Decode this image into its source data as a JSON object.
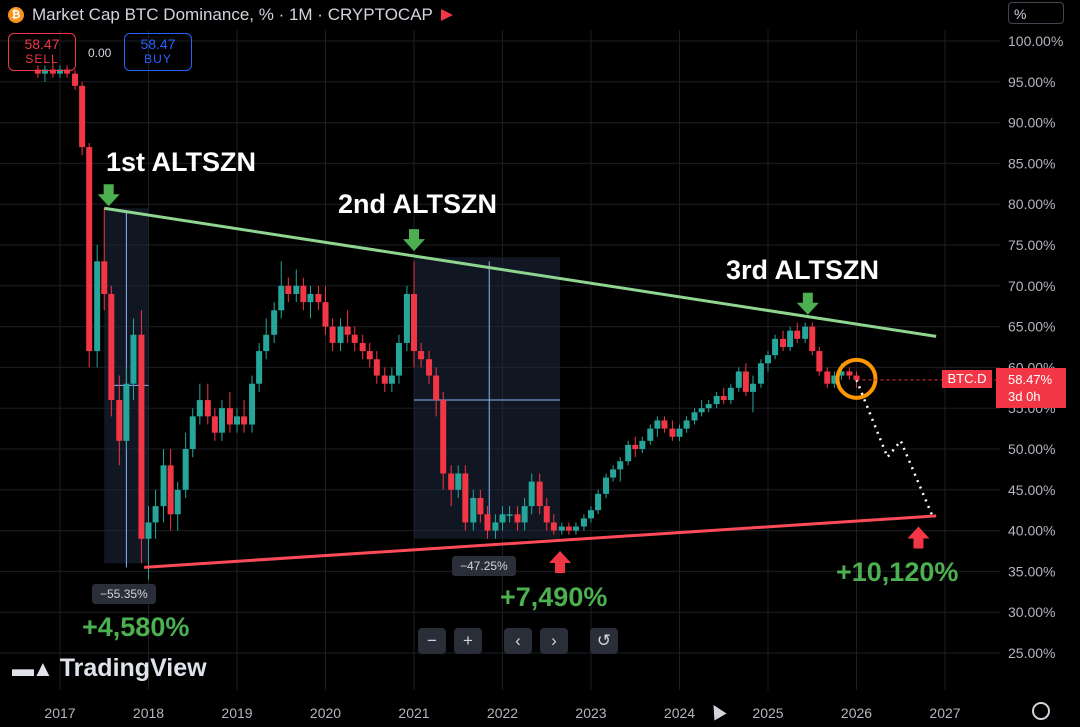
{
  "header": {
    "title": "Market Cap BTC Dominance, % · 1M · CRYPTOCAP",
    "unit_label": "%"
  },
  "trade": {
    "sell_price": "58.47",
    "sell_label": "SELL",
    "spread": "0.00",
    "buy_price": "58.47",
    "buy_label": "BUY"
  },
  "annotations": {
    "first": "1st ALTSZN",
    "second": "2nd ALTSZN",
    "third": "3rd ALTSZN",
    "gain1": "+4,580%",
    "gain2": "+7,490%",
    "gain3": "+10,120%",
    "drop1": "−55.35%",
    "drop2": "−47.25%"
  },
  "price_label": {
    "symbol": "BTC.D",
    "value": "58.47%",
    "countdown": "3d 0h"
  },
  "brand": "TradingView",
  "colors": {
    "up": "#26a69a",
    "down": "#f23645",
    "upper_trend": "#8fd48f",
    "lower_trend": "#ff4a5a",
    "gain": "#4caf50",
    "highlight": "#ff9800"
  },
  "chart_data": {
    "type": "candlestick",
    "x_ticks": [
      "2017",
      "2018",
      "2019",
      "2020",
      "2021",
      "2022",
      "2023",
      "2024",
      "2025",
      "2026",
      "2027"
    ],
    "y_ticks": [
      "100.00%",
      "95.00%",
      "90.00%",
      "85.00%",
      "80.00%",
      "75.00%",
      "70.00%",
      "65.00%",
      "60.00%",
      "55.00%",
      "50.00%",
      "45.00%",
      "40.00%",
      "35.00%",
      "30.00%",
      "25.00%"
    ],
    "ylim": [
      23,
      102
    ],
    "xlim": [
      2016.6,
      2027.2
    ],
    "grid": true,
    "trendlines": [
      {
        "from": [
          2017.5,
          79.5
        ],
        "to": [
          2026.9,
          63.8
        ]
      },
      {
        "from": [
          2017.95,
          35.5
        ],
        "to": [
          2026.9,
          41.8
        ]
      }
    ],
    "candles": [
      [
        2016.75,
        96.5,
        97.0,
        95.5,
        96.0
      ],
      [
        2016.83,
        96.0,
        97.0,
        95.0,
        96.5
      ],
      [
        2016.92,
        96.5,
        97.5,
        95.5,
        96.0
      ],
      [
        2017.0,
        96.0,
        97.0,
        95.5,
        96.5
      ],
      [
        2017.08,
        96.5,
        97.0,
        95.5,
        96.0
      ],
      [
        2017.17,
        96.0,
        96.5,
        94.0,
        94.5
      ],
      [
        2017.25,
        94.5,
        95.0,
        86.0,
        87.0
      ],
      [
        2017.33,
        87.0,
        87.5,
        60.0,
        62.0
      ],
      [
        2017.42,
        62.0,
        75.0,
        60.0,
        73.0
      ],
      [
        2017.5,
        73.0,
        79.5,
        67.0,
        69.0
      ],
      [
        2017.58,
        69.0,
        70.0,
        54.0,
        56.0
      ],
      [
        2017.67,
        56.0,
        59.0,
        48.0,
        51.0
      ],
      [
        2017.75,
        51.0,
        60.0,
        50.0,
        58.0
      ],
      [
        2017.83,
        58.0,
        66.0,
        56.0,
        64.0
      ],
      [
        2017.92,
        64.0,
        67.0,
        36.0,
        39.0
      ],
      [
        2018.0,
        39.0,
        43.0,
        34.0,
        41.0
      ],
      [
        2018.08,
        41.0,
        45.0,
        39.0,
        43.0
      ],
      [
        2018.17,
        43.0,
        50.0,
        41.0,
        48.0
      ],
      [
        2018.25,
        48.0,
        50.0,
        40.0,
        42.0
      ],
      [
        2018.33,
        42.0,
        46.0,
        40.0,
        45.0
      ],
      [
        2018.42,
        45.0,
        52.0,
        44.0,
        50.0
      ],
      [
        2018.5,
        50.0,
        55.0,
        49.0,
        54.0
      ],
      [
        2018.58,
        54.0,
        58.0,
        53.0,
        56.0
      ],
      [
        2018.67,
        56.0,
        58.0,
        53.0,
        54.0
      ],
      [
        2018.75,
        54.0,
        55.0,
        51.0,
        52.0
      ],
      [
        2018.83,
        52.0,
        56.0,
        51.0,
        55.0
      ],
      [
        2018.92,
        55.0,
        57.0,
        52.0,
        53.0
      ],
      [
        2019.0,
        53.0,
        55.0,
        52.0,
        54.0
      ],
      [
        2019.08,
        54.0,
        56.0,
        52.0,
        53.0
      ],
      [
        2019.17,
        53.0,
        59.0,
        52.0,
        58.0
      ],
      [
        2019.25,
        58.0,
        63.0,
        57.0,
        62.0
      ],
      [
        2019.33,
        62.0,
        66.0,
        61.0,
        64.0
      ],
      [
        2019.42,
        64.0,
        68.0,
        63.0,
        67.0
      ],
      [
        2019.5,
        67.0,
        73.0,
        66.0,
        70.0
      ],
      [
        2019.58,
        70.0,
        71.0,
        68.0,
        69.0
      ],
      [
        2019.67,
        69.0,
        72.0,
        68.0,
        70.0
      ],
      [
        2019.75,
        70.0,
        71.0,
        67.0,
        68.0
      ],
      [
        2019.83,
        68.0,
        70.0,
        66.0,
        69.0
      ],
      [
        2019.92,
        69.0,
        70.0,
        67.0,
        68.0
      ],
      [
        2020.0,
        68.0,
        70.0,
        64.0,
        65.0
      ],
      [
        2020.08,
        65.0,
        66.0,
        62.0,
        63.0
      ],
      [
        2020.17,
        63.0,
        66.0,
        62.0,
        65.0
      ],
      [
        2020.25,
        65.0,
        67.0,
        63.0,
        64.0
      ],
      [
        2020.33,
        64.0,
        65.0,
        62.0,
        63.0
      ],
      [
        2020.42,
        63.0,
        64.0,
        61.0,
        62.0
      ],
      [
        2020.5,
        62.0,
        63.0,
        60.0,
        61.0
      ],
      [
        2020.58,
        61.0,
        62.0,
        58.0,
        59.0
      ],
      [
        2020.67,
        59.0,
        60.0,
        57.0,
        58.0
      ],
      [
        2020.75,
        58.0,
        60.0,
        57.0,
        59.0
      ],
      [
        2020.83,
        59.0,
        64.0,
        58.0,
        63.0
      ],
      [
        2020.92,
        63.0,
        70.0,
        62.0,
        69.0
      ],
      [
        2021.0,
        69.0,
        73.0,
        60.0,
        62.0
      ],
      [
        2021.08,
        62.0,
        63.0,
        60.0,
        61.0
      ],
      [
        2021.17,
        61.0,
        62.0,
        58.0,
        59.0
      ],
      [
        2021.25,
        59.0,
        60.0,
        54.0,
        56.0
      ],
      [
        2021.33,
        56.0,
        57.0,
        45.0,
        47.0
      ],
      [
        2021.42,
        47.0,
        48.0,
        43.0,
        45.0
      ],
      [
        2021.5,
        45.0,
        48.0,
        44.0,
        47.0
      ],
      [
        2021.58,
        47.0,
        48.0,
        40.0,
        41.0
      ],
      [
        2021.67,
        41.0,
        45.0,
        40.0,
        44.0
      ],
      [
        2021.75,
        44.0,
        45.0,
        41.0,
        42.0
      ],
      [
        2021.83,
        42.0,
        43.0,
        39.0,
        40.0
      ],
      [
        2021.92,
        40.0,
        42.0,
        39.0,
        41.0
      ],
      [
        2022.0,
        41.0,
        43.0,
        40.0,
        42.0
      ],
      [
        2022.08,
        42.0,
        43.0,
        41.0,
        42.0
      ],
      [
        2022.17,
        42.0,
        43.0,
        40.0,
        41.0
      ],
      [
        2022.25,
        41.0,
        44.0,
        40.0,
        43.0
      ],
      [
        2022.33,
        43.0,
        47.0,
        42.0,
        46.0
      ],
      [
        2022.42,
        46.0,
        47.0,
        42.0,
        43.0
      ],
      [
        2022.5,
        43.0,
        44.0,
        40.0,
        41.0
      ],
      [
        2022.58,
        41.0,
        42.0,
        39.5,
        40.0
      ],
      [
        2022.67,
        40.0,
        41.0,
        39.5,
        40.5
      ],
      [
        2022.75,
        40.5,
        41.0,
        39.5,
        40.0
      ],
      [
        2022.83,
        40.0,
        41.0,
        39.5,
        40.5
      ],
      [
        2022.92,
        40.5,
        42.0,
        40.0,
        41.5
      ],
      [
        2023.0,
        41.5,
        43.0,
        41.0,
        42.5
      ],
      [
        2023.08,
        42.5,
        45.0,
        42.0,
        44.5
      ],
      [
        2023.17,
        44.5,
        47.0,
        44.0,
        46.5
      ],
      [
        2023.25,
        46.5,
        48.0,
        46.0,
        47.5
      ],
      [
        2023.33,
        47.5,
        49.0,
        46.0,
        48.5
      ],
      [
        2023.42,
        48.5,
        51.0,
        48.0,
        50.5
      ],
      [
        2023.5,
        50.5,
        51.5,
        49.0,
        50.0
      ],
      [
        2023.58,
        50.0,
        51.5,
        49.5,
        51.0
      ],
      [
        2023.67,
        51.0,
        53.0,
        50.5,
        52.5
      ],
      [
        2023.75,
        52.5,
        54.0,
        51.5,
        53.5
      ],
      [
        2023.83,
        53.5,
        54.0,
        52.0,
        52.5
      ],
      [
        2023.92,
        52.5,
        53.5,
        51.0,
        51.5
      ],
      [
        2024.0,
        51.5,
        53.0,
        51.0,
        52.5
      ],
      [
        2024.08,
        52.5,
        54.0,
        52.0,
        53.5
      ],
      [
        2024.17,
        53.5,
        55.0,
        53.0,
        54.5
      ],
      [
        2024.25,
        54.5,
        56.0,
        54.0,
        55.0
      ],
      [
        2024.33,
        55.0,
        56.0,
        54.5,
        55.5
      ],
      [
        2024.42,
        55.5,
        57.0,
        55.0,
        56.5
      ],
      [
        2024.5,
        56.5,
        57.5,
        55.5,
        56.0
      ],
      [
        2024.58,
        56.0,
        58.0,
        55.5,
        57.5
      ],
      [
        2024.67,
        57.5,
        60.0,
        57.0,
        59.5
      ],
      [
        2024.75,
        59.5,
        60.5,
        56.5,
        57.0
      ],
      [
        2024.83,
        57.0,
        59.0,
        54.5,
        58.0
      ],
      [
        2024.92,
        58.0,
        61.0,
        57.5,
        60.5
      ],
      [
        2025.0,
        60.5,
        62.0,
        59.5,
        61.5
      ],
      [
        2025.08,
        61.5,
        64.0,
        61.0,
        63.5
      ],
      [
        2025.17,
        63.5,
        64.5,
        62.0,
        62.5
      ],
      [
        2025.25,
        62.5,
        65.0,
        62.0,
        64.5
      ],
      [
        2025.33,
        64.5,
        65.5,
        63.0,
        63.5
      ],
      [
        2025.42,
        63.5,
        65.5,
        63.0,
        65.0
      ],
      [
        2025.5,
        65.0,
        65.5,
        61.5,
        62.0
      ],
      [
        2025.58,
        62.0,
        62.5,
        59.0,
        59.5
      ],
      [
        2025.67,
        59.5,
        60.0,
        57.5,
        58.0
      ],
      [
        2025.75,
        58.0,
        59.5,
        57.5,
        59.0
      ],
      [
        2025.83,
        59.0,
        60.5,
        58.5,
        59.5
      ],
      [
        2025.92,
        59.5,
        60.0,
        58.5,
        59.0
      ],
      [
        2026.0,
        59.0,
        59.5,
        57.5,
        58.47
      ]
    ],
    "projection": [
      [
        2026.0,
        58.47
      ],
      [
        2026.35,
        49.0
      ],
      [
        2026.5,
        51.0
      ],
      [
        2026.85,
        42.0
      ]
    ]
  }
}
